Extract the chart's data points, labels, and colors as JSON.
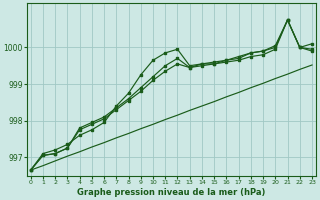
{
  "xlabel": "Graphe pression niveau de la mer (hPa)",
  "bg_color": "#cde8e4",
  "grid_color": "#a0c8c4",
  "line_color": "#1a5c1a",
  "hours": [
    0,
    1,
    2,
    3,
    4,
    5,
    6,
    7,
    8,
    9,
    10,
    11,
    12,
    13,
    14,
    15,
    16,
    17,
    18,
    19,
    20,
    21,
    22,
    23
  ],
  "series1": [
    996.65,
    997.05,
    997.1,
    997.25,
    997.8,
    997.95,
    998.1,
    998.35,
    998.6,
    998.9,
    999.2,
    999.5,
    999.7,
    999.45,
    999.55,
    999.55,
    999.65,
    999.7,
    999.85,
    999.9,
    1000.05,
    1000.75,
    1000.0,
    999.95
  ],
  "series2": [
    996.65,
    997.1,
    997.2,
    997.35,
    997.6,
    997.75,
    997.95,
    998.4,
    998.75,
    999.25,
    999.65,
    999.85,
    999.95,
    999.5,
    999.55,
    999.6,
    999.65,
    999.75,
    999.85,
    999.9,
    1000.0,
    1000.75,
    1000.0,
    1000.1
  ],
  "series3": [
    996.65,
    997.05,
    997.1,
    997.25,
    997.75,
    997.9,
    998.05,
    998.3,
    998.55,
    998.8,
    999.1,
    999.35,
    999.55,
    999.45,
    999.5,
    999.55,
    999.6,
    999.65,
    999.75,
    999.8,
    999.95,
    1000.75,
    1000.0,
    999.9
  ],
  "trend": [
    996.65,
    996.77,
    996.9,
    997.03,
    997.15,
    997.28,
    997.4,
    997.53,
    997.65,
    997.78,
    997.9,
    998.03,
    998.15,
    998.28,
    998.4,
    998.52,
    998.65,
    998.77,
    998.9,
    999.02,
    999.15,
    999.27,
    999.4,
    999.52
  ],
  "ylim": [
    996.5,
    1001.2
  ],
  "yticks": [
    997,
    998,
    999,
    1000
  ],
  "xlim_min": -0.3,
  "xlim_max": 23.3,
  "xticks": [
    0,
    1,
    2,
    3,
    4,
    5,
    6,
    7,
    8,
    9,
    10,
    11,
    12,
    13,
    14,
    15,
    16,
    17,
    18,
    19,
    20,
    21,
    22,
    23
  ]
}
